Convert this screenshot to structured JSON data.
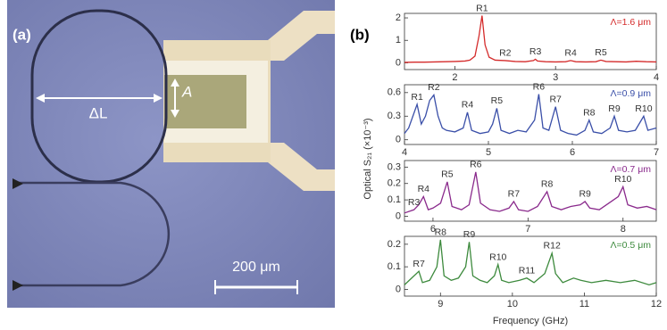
{
  "panel_a": {
    "label": "(a)",
    "delta_l": "ΔL",
    "a": "A",
    "scale_bar": "200 μm"
  },
  "panel_b": {
    "label": "(b)",
    "ylabel": "Optical S₂₁ (×10⁻³)",
    "xlabel": "Frequency (GHz)"
  },
  "chart_data": [
    {
      "type": "line",
      "annotation": "Λ=1.6 μm",
      "x": [
        1.5,
        1.6,
        1.7,
        1.8,
        1.9,
        2.0,
        2.1,
        2.15,
        2.2,
        2.24,
        2.27,
        2.3,
        2.34,
        2.4,
        2.5,
        2.6,
        2.7,
        2.78,
        2.8,
        2.82,
        2.9,
        3.0,
        3.1,
        3.15,
        3.2,
        3.3,
        3.4,
        3.45,
        3.5,
        3.6,
        3.7,
        3.8,
        3.9,
        4.0
      ],
      "series": [
        {
          "color": "#d42a2a",
          "values": [
            0.02,
            0.03,
            0.03,
            0.04,
            0.05,
            0.06,
            0.08,
            0.12,
            0.3,
            1.2,
            2.1,
            0.8,
            0.25,
            0.12,
            0.1,
            0.06,
            0.05,
            0.1,
            0.16,
            0.08,
            0.05,
            0.04,
            0.05,
            0.1,
            0.05,
            0.04,
            0.05,
            0.12,
            0.06,
            0.05,
            0.04,
            0.07,
            0.05,
            0.04
          ]
        }
      ],
      "xlim": [
        1.5,
        4
      ],
      "ylim": [
        -0.3,
        2.2
      ],
      "xticks": [
        2,
        3,
        4
      ],
      "yticks": [
        0,
        1,
        2
      ],
      "peaks": [
        {
          "label": "R1",
          "x": 2.27,
          "y": 2.1
        },
        {
          "label": "R2",
          "x": 2.5,
          "y": 0.1
        },
        {
          "label": "R3",
          "x": 2.8,
          "y": 0.16
        },
        {
          "label": "R4",
          "x": 3.15,
          "y": 0.1
        },
        {
          "label": "R5",
          "x": 3.45,
          "y": 0.12
        }
      ]
    },
    {
      "type": "line",
      "annotation": "Λ=0.9 μm",
      "x": [
        4.0,
        4.05,
        4.1,
        4.15,
        4.2,
        4.25,
        4.3,
        4.35,
        4.4,
        4.45,
        4.5,
        4.6,
        4.7,
        4.75,
        4.8,
        4.9,
        5.0,
        5.05,
        5.1,
        5.15,
        5.25,
        5.35,
        5.45,
        5.55,
        5.6,
        5.65,
        5.72,
        5.8,
        5.86,
        5.95,
        6.05,
        6.15,
        6.2,
        6.25,
        6.35,
        6.45,
        6.5,
        6.55,
        6.65,
        6.75,
        6.85,
        6.9,
        7.0
      ],
      "series": [
        {
          "color": "#3a4fa8",
          "values": [
            0.08,
            0.15,
            0.3,
            0.45,
            0.2,
            0.3,
            0.5,
            0.57,
            0.3,
            0.15,
            0.12,
            0.1,
            0.15,
            0.35,
            0.12,
            0.08,
            0.1,
            0.2,
            0.4,
            0.12,
            0.08,
            0.12,
            0.1,
            0.25,
            0.58,
            0.15,
            0.12,
            0.42,
            0.12,
            0.08,
            0.06,
            0.12,
            0.25,
            0.1,
            0.08,
            0.15,
            0.3,
            0.12,
            0.1,
            0.12,
            0.3,
            0.12,
            0.15
          ]
        }
      ],
      "xlim": [
        4,
        7
      ],
      "ylim": [
        -0.06,
        0.7
      ],
      "xticks": [
        4,
        5,
        6,
        7
      ],
      "yticks": [
        0.0,
        0.3,
        0.6
      ],
      "peaks": [
        {
          "label": "R1",
          "x": 4.15,
          "y": 0.45
        },
        {
          "label": "R2",
          "x": 4.35,
          "y": 0.57
        },
        {
          "label": "R4",
          "x": 4.75,
          "y": 0.35
        },
        {
          "label": "R5",
          "x": 5.1,
          "y": 0.4
        },
        {
          "label": "R6",
          "x": 5.6,
          "y": 0.58
        },
        {
          "label": "R7",
          "x": 5.8,
          "y": 0.42
        },
        {
          "label": "R8",
          "x": 6.2,
          "y": 0.25
        },
        {
          "label": "R9",
          "x": 6.5,
          "y": 0.3
        },
        {
          "label": "R10",
          "x": 6.85,
          "y": 0.3
        }
      ]
    },
    {
      "type": "line",
      "annotation": "Λ=0.7 μm",
      "x": [
        5.7,
        5.8,
        5.85,
        5.9,
        5.95,
        6.0,
        6.08,
        6.15,
        6.2,
        6.3,
        6.38,
        6.45,
        6.5,
        6.6,
        6.7,
        6.8,
        6.85,
        6.9,
        7.0,
        7.1,
        7.2,
        7.25,
        7.35,
        7.45,
        7.55,
        7.6,
        7.65,
        7.75,
        7.85,
        7.95,
        8.0,
        8.05,
        8.15,
        8.25,
        8.35
      ],
      "series": [
        {
          "color": "#8a2a8c",
          "values": [
            0.02,
            0.04,
            0.07,
            0.12,
            0.04,
            0.05,
            0.08,
            0.21,
            0.06,
            0.04,
            0.07,
            0.27,
            0.08,
            0.04,
            0.03,
            0.05,
            0.09,
            0.04,
            0.03,
            0.06,
            0.15,
            0.06,
            0.04,
            0.06,
            0.07,
            0.09,
            0.05,
            0.04,
            0.08,
            0.12,
            0.18,
            0.07,
            0.05,
            0.06,
            0.04
          ]
        }
      ],
      "xlim": [
        5.7,
        8.35
      ],
      "ylim": [
        -0.03,
        0.34
      ],
      "xticks": [
        6,
        7,
        8
      ],
      "yticks": [
        0.0,
        0.1,
        0.2,
        0.3
      ],
      "peaks": [
        {
          "label": "R3",
          "x": 5.8,
          "y": 0.04
        },
        {
          "label": "R4",
          "x": 5.9,
          "y": 0.12
        },
        {
          "label": "R5",
          "x": 6.15,
          "y": 0.21
        },
        {
          "label": "R6",
          "x": 6.45,
          "y": 0.27
        },
        {
          "label": "R7",
          "x": 6.85,
          "y": 0.09
        },
        {
          "label": "R8",
          "x": 7.2,
          "y": 0.15
        },
        {
          "label": "R9",
          "x": 7.6,
          "y": 0.09
        },
        {
          "label": "R10",
          "x": 8.0,
          "y": 0.18
        }
      ]
    },
    {
      "type": "line",
      "annotation": "Λ=0.5 μm",
      "x": [
        8.5,
        8.6,
        8.7,
        8.75,
        8.85,
        8.95,
        9.0,
        9.05,
        9.15,
        9.25,
        9.35,
        9.4,
        9.45,
        9.55,
        9.65,
        9.75,
        9.8,
        9.85,
        9.95,
        10.1,
        10.2,
        10.3,
        10.45,
        10.55,
        10.6,
        10.7,
        10.85,
        10.95,
        11.1,
        11.3,
        11.5,
        11.7,
        11.9,
        12.0
      ],
      "series": [
        {
          "color": "#3d8a3d",
          "values": [
            0.02,
            0.05,
            0.08,
            0.03,
            0.04,
            0.1,
            0.22,
            0.06,
            0.04,
            0.05,
            0.1,
            0.21,
            0.06,
            0.04,
            0.03,
            0.06,
            0.11,
            0.04,
            0.03,
            0.04,
            0.05,
            0.03,
            0.07,
            0.16,
            0.07,
            0.03,
            0.05,
            0.04,
            0.03,
            0.04,
            0.03,
            0.04,
            0.02,
            0.03
          ]
        }
      ],
      "xlim": [
        8.5,
        12
      ],
      "ylim": [
        -0.03,
        0.235
      ],
      "xticks": [
        9,
        10,
        11,
        12
      ],
      "yticks": [
        0.0,
        0.1,
        0.2
      ],
      "peaks": [
        {
          "label": "R7",
          "x": 8.7,
          "y": 0.08
        },
        {
          "label": "R8",
          "x": 9.0,
          "y": 0.22
        },
        {
          "label": "R9",
          "x": 9.4,
          "y": 0.21
        },
        {
          "label": "R10",
          "x": 9.8,
          "y": 0.11
        },
        {
          "label": "R11",
          "x": 10.2,
          "y": 0.05
        },
        {
          "label": "R12",
          "x": 10.55,
          "y": 0.16
        }
      ]
    }
  ]
}
